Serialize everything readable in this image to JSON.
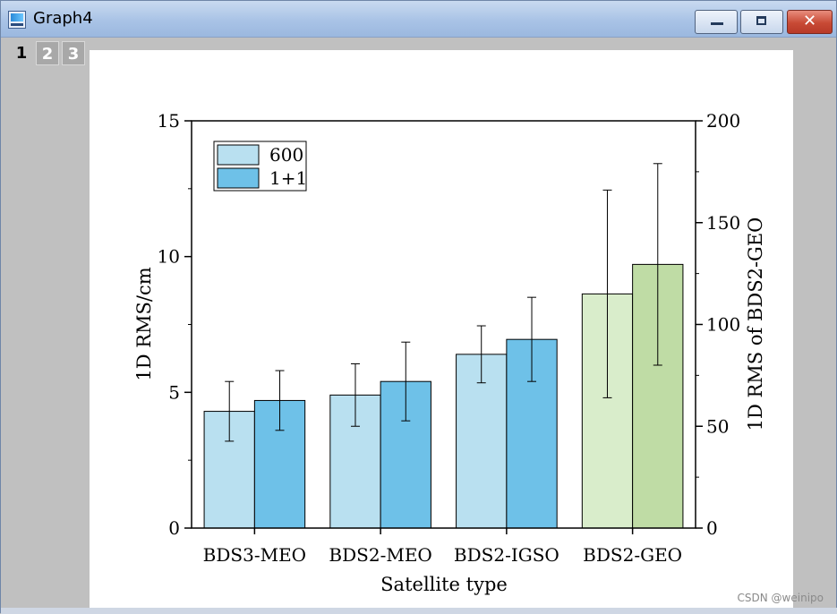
{
  "window": {
    "title": "Graph4",
    "controls": {
      "minimize": "",
      "maximize": "",
      "close": "✕"
    }
  },
  "page_tabs": [
    "1",
    "2",
    "3"
  ],
  "watermark": "CSDN @weinipo",
  "colors": {
    "series_600": "#b9e0f0",
    "series_1p1": "#6ec1e8",
    "geo_600": "#d9edcb",
    "geo_1p1": "#bfdca5",
    "error_bar": "#000000"
  },
  "chart_data": {
    "type": "bar",
    "title": "",
    "xlabel": "Satellite type",
    "ylabel": "1D RMS/cm",
    "ylabel_right": "1D RMS of BDS2-GEO",
    "categories": [
      "BDS3-MEO",
      "BDS2-MEO",
      "BDS2-IGSO",
      "BDS2-GEO"
    ],
    "series": [
      {
        "name": "600",
        "values": [
          4.3,
          4.9,
          6.4,
          115
        ],
        "errors": [
          1.1,
          1.15,
          1.05,
          51
        ],
        "axis": [
          "left",
          "left",
          "left",
          "right"
        ]
      },
      {
        "name": "1+1",
        "values": [
          4.7,
          5.4,
          6.95,
          129.5
        ],
        "errors": [
          1.1,
          1.45,
          1.55,
          49.5
        ],
        "axis": [
          "left",
          "left",
          "left",
          "right"
        ]
      }
    ],
    "ylim": [
      0,
      15
    ],
    "yticks": [
      "0",
      "5",
      "10",
      "15"
    ],
    "ylim_right": [
      0,
      200
    ],
    "yticks_right": [
      "0",
      "50",
      "100",
      "150",
      "200"
    ],
    "legend": {
      "placement": "top-left",
      "entries": [
        "600",
        "1+1"
      ]
    }
  }
}
